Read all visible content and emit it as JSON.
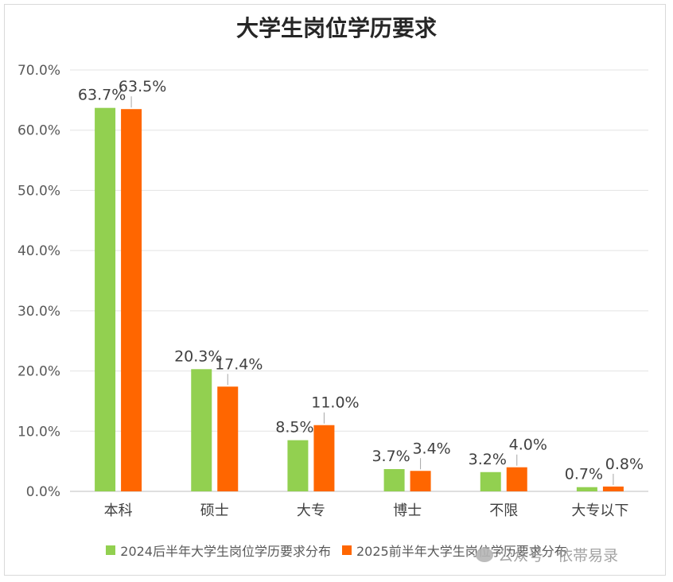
{
  "chart_data": {
    "type": "bar",
    "title": "大学生岗位学历要求",
    "categories": [
      "本科",
      "硕士",
      "大专",
      "博士",
      "不限",
      "大专以下"
    ],
    "series": [
      {
        "name": "2024后半年大学生岗位学历要求分布",
        "color": "#92d050",
        "values": [
          63.7,
          20.3,
          8.5,
          3.7,
          3.2,
          0.7
        ],
        "labels": [
          "63.7%",
          "20.3%",
          "8.5%",
          "3.7%",
          "3.2%",
          "0.7%"
        ]
      },
      {
        "name": "2025前半年大学生岗位学历要求分布",
        "color": "#ff6600",
        "values": [
          63.5,
          17.4,
          11.0,
          3.4,
          4.0,
          0.8
        ],
        "labels": [
          "63.5%",
          "17.4%",
          "11.0%",
          "3.4%",
          "4.0%",
          "0.8%"
        ]
      }
    ],
    "yticks": [
      "0.0%",
      "10.0%",
      "20.0%",
      "30.0%",
      "40.0%",
      "50.0%",
      "60.0%",
      "70.0%"
    ],
    "ylim": [
      0,
      70
    ],
    "grid": true,
    "legend": "bottom"
  },
  "watermark": {
    "text": "公众号 · 依帯易录"
  }
}
